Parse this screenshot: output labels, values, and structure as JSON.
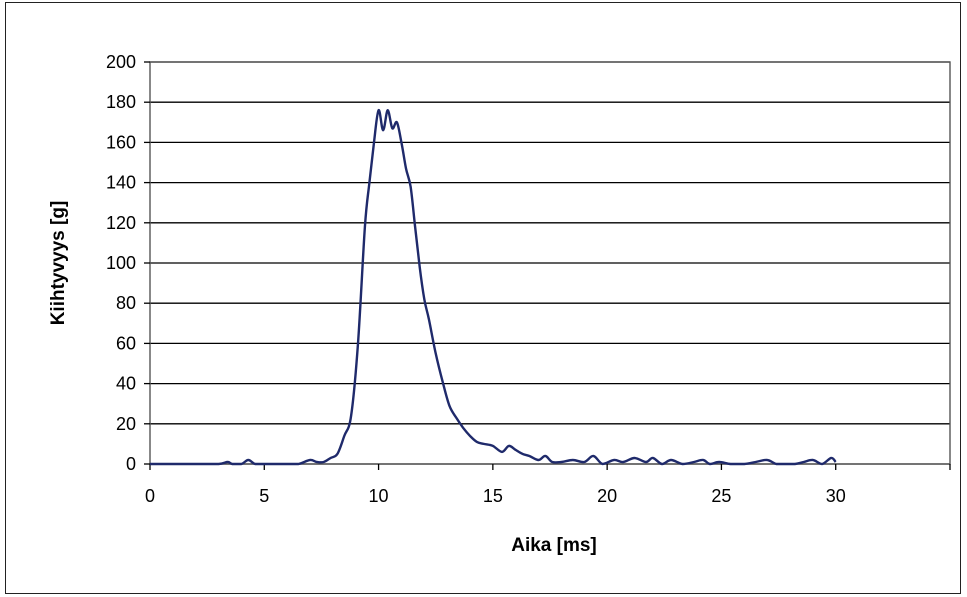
{
  "chart_data": {
    "type": "line",
    "title": "",
    "xlabel": "Aika [ms]",
    "ylabel": "Kiihtyvyys [g]",
    "xlim": [
      0,
      35
    ],
    "ylim": [
      0,
      200
    ],
    "xticks": [
      0,
      5,
      10,
      15,
      20,
      25,
      30
    ],
    "yticks": [
      0,
      20,
      40,
      60,
      80,
      100,
      120,
      140,
      160,
      180,
      200
    ],
    "grid": "horizontal",
    "legend": "none",
    "line_color": "#1f2a6b",
    "series": [
      {
        "x": [
          0,
          1,
          2,
          3,
          3.4,
          3.6,
          4,
          4.3,
          4.6,
          5,
          5.5,
          6,
          6.5,
          7,
          7.3,
          7.6,
          7.9,
          8.2,
          8.5,
          8.8,
          9.1,
          9.4,
          9.6,
          9.8,
          10.0,
          10.2,
          10.4,
          10.6,
          10.8,
          11.0,
          11.2,
          11.4,
          11.6,
          11.8,
          12.0,
          12.2,
          12.5,
          12.8,
          13.1,
          13.4,
          13.7,
          14.0,
          14.3,
          14.6,
          15.0,
          15.4,
          15.7,
          16.0,
          16.3,
          16.6,
          17.0,
          17.3,
          17.6,
          18.0,
          18.5,
          19.0,
          19.4,
          19.8,
          20.3,
          20.7,
          21.2,
          21.7,
          22.0,
          22.4,
          22.8,
          23.3,
          23.8,
          24.2,
          24.5,
          24.9,
          25.4,
          26.0,
          26.5,
          27.0,
          27.4,
          27.8,
          28.2,
          28.6,
          29.0,
          29.4,
          29.8,
          30.0
        ],
        "y": [
          0,
          0,
          0,
          0,
          1,
          0,
          0,
          2,
          0,
          0,
          0,
          0,
          0,
          2,
          1,
          1,
          3,
          5,
          14,
          24,
          60,
          118,
          140,
          160,
          176,
          166,
          176,
          167,
          170,
          160,
          147,
          138,
          118,
          98,
          82,
          72,
          55,
          41,
          29,
          23,
          18,
          14,
          11,
          10,
          9,
          6,
          9,
          7,
          5,
          4,
          2,
          4,
          1,
          1,
          2,
          1,
          4,
          0,
          2,
          1,
          3,
          1,
          3,
          0,
          2,
          0,
          1,
          2,
          0,
          1,
          0,
          0,
          1,
          2,
          0,
          0,
          0,
          1,
          2,
          0,
          3,
          1
        ]
      }
    ]
  }
}
